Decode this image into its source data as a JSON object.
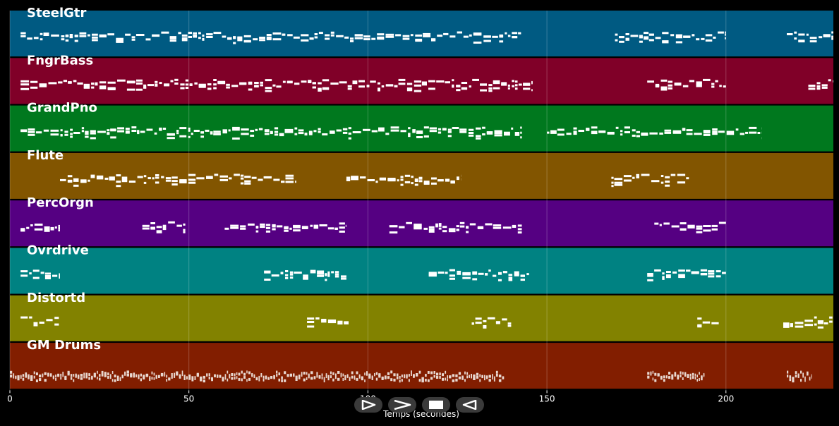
{
  "chart_data": {
    "type": "piano-roll",
    "xlabel": "Temps (secondes)",
    "ylabel": "",
    "xlim": [
      0,
      230
    ],
    "x_ticks": [
      0,
      50,
      100,
      150,
      200
    ],
    "grid": true,
    "tracks": [
      {
        "name": "SteelGtr",
        "color": "#005a82",
        "segments": [
          [
            3,
            143
          ],
          [
            169,
            200
          ],
          [
            217,
            230
          ]
        ]
      },
      {
        "name": "FngrBass",
        "color": "#800028",
        "segments": [
          [
            3,
            146
          ],
          [
            178,
            200
          ],
          [
            223,
            230
          ]
        ]
      },
      {
        "name": "GrandPno",
        "color": "#00781e",
        "segments": [
          [
            3,
            143
          ],
          [
            150,
            210
          ]
        ]
      },
      {
        "name": "Flute",
        "color": "#825500",
        "segments": [
          [
            14,
            80
          ],
          [
            94,
            126
          ],
          [
            168,
            190
          ]
        ]
      },
      {
        "name": "PercOrgn",
        "color": "#550082",
        "segments": [
          [
            3,
            14
          ],
          [
            37,
            49
          ],
          [
            60,
            94
          ],
          [
            106,
            143
          ],
          [
            180,
            200
          ]
        ]
      },
      {
        "name": "Ovrdrive",
        "color": "#008282",
        "segments": [
          [
            3,
            14
          ],
          [
            71,
            94
          ],
          [
            117,
            145
          ],
          [
            178,
            200
          ]
        ]
      },
      {
        "name": "Distortd",
        "color": "#828200",
        "segments": [
          [
            3,
            14
          ],
          [
            83,
            95
          ],
          [
            129,
            140
          ],
          [
            192,
            198
          ],
          [
            216,
            230
          ]
        ]
      },
      {
        "name": "GM Drums",
        "color": "#821e00",
        "segments": [
          [
            0,
            138
          ],
          [
            178,
            194
          ],
          [
            217,
            224
          ]
        ]
      }
    ]
  },
  "controls": [
    {
      "name": "play-button",
      "icon": "play-icon"
    },
    {
      "name": "fast-forward-button",
      "icon": "fast-forward-icon"
    },
    {
      "name": "stop-button",
      "icon": "stop-icon"
    },
    {
      "name": "rewind-button",
      "icon": "rewind-icon"
    }
  ]
}
